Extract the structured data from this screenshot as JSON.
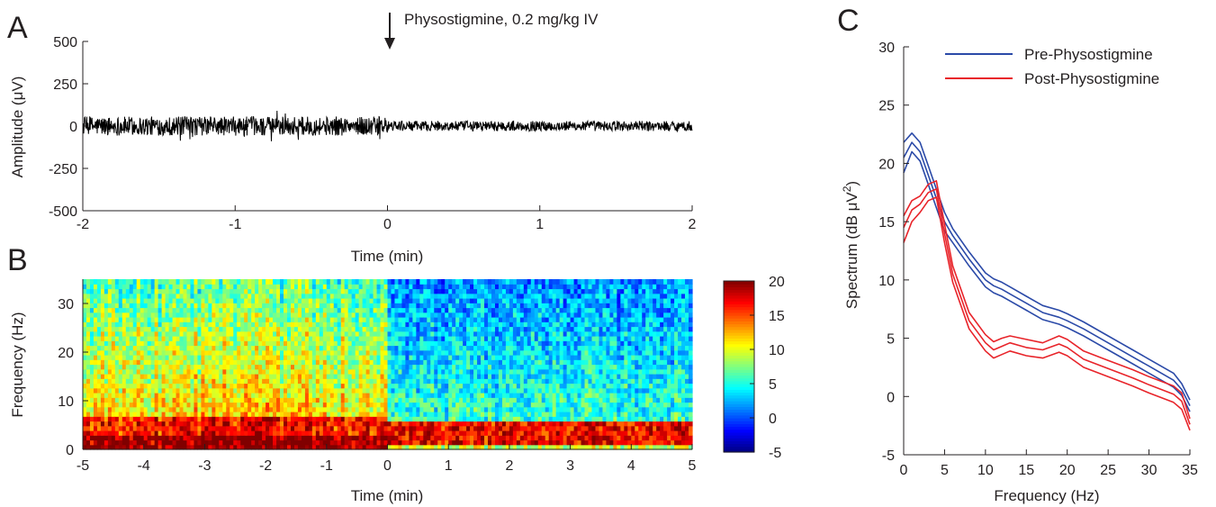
{
  "panels": {
    "a": {
      "letter": "A"
    },
    "b": {
      "letter": "B"
    },
    "c": {
      "letter": "C"
    }
  },
  "chart_data": [
    {
      "panel": "A",
      "type": "line",
      "description_of_signal": "raw EEG trace, roughly ±75 µV before injection, roughly ±40 µV after",
      "annotation": "Physostigmine, 0.2 mg/kg IV",
      "annotation_x": 0,
      "xlabel": "Time (min)",
      "ylabel": "Amplitude (μV)",
      "xlim": [
        -2,
        2
      ],
      "ylim": [
        -500,
        500
      ],
      "xticks": [
        -2,
        -1,
        0,
        1,
        2
      ],
      "yticks": [
        500,
        250,
        0,
        -250,
        -500
      ],
      "yticklabels": [
        "500",
        "250",
        "0",
        "-250",
        "-500"
      ],
      "pre_amplitude_range": [
        -75,
        75
      ],
      "post_amplitude_range": [
        -40,
        40
      ],
      "series_color": "#000000"
    },
    {
      "panel": "B",
      "type": "heatmap",
      "xlabel": "Time (min)",
      "ylabel": "Frequency (Hz)",
      "xlim": [
        -5,
        5
      ],
      "ylim": [
        0,
        35
      ],
      "xticks": [
        -5,
        -4,
        -3,
        -2,
        -1,
        0,
        1,
        2,
        3,
        4,
        5
      ],
      "xticklabels": [
        "-5",
        "-4",
        "-3",
        "-2",
        "-1",
        "0",
        "1",
        "2",
        "3",
        "4",
        "5"
      ],
      "yticks": [
        0,
        10,
        20,
        30
      ],
      "colorbar_range": [
        -5,
        20
      ],
      "colorbar_ticks": [
        20,
        15,
        10,
        5,
        0,
        -5
      ],
      "colormap": "jet",
      "color_unit": "dB",
      "pre_low_freq_power": 18,
      "post_low_freq_power": 16,
      "pre_high_freq_power": 8,
      "post_high_freq_power": 2
    },
    {
      "panel": "C",
      "type": "line",
      "xlabel": "Frequency (Hz)",
      "ylabel": "Spectrum (dB μV²)",
      "ylabel_main": "Spectrum (dB μV",
      "ylabel_sup": "2",
      "ylabel_close": ")",
      "xlim": [
        0,
        35
      ],
      "ylim": [
        -5,
        30
      ],
      "xticks": [
        0,
        5,
        10,
        15,
        20,
        25,
        30,
        35
      ],
      "yticks": [
        -5,
        0,
        5,
        10,
        15,
        20,
        25,
        30
      ],
      "legend_position": "top-right",
      "x": [
        0,
        1,
        2,
        3,
        4,
        5,
        6,
        8,
        10,
        11,
        12,
        13,
        15,
        17,
        19,
        20,
        22,
        25,
        28,
        30,
        33,
        34,
        35
      ],
      "series": [
        {
          "name": "Pre-Physostigmine",
          "color": "#2b4aa8",
          "mean": [
            20.5,
            21.8,
            21.0,
            19.0,
            17.0,
            15.0,
            13.8,
            11.8,
            10.0,
            9.5,
            9.2,
            8.8,
            8.0,
            7.2,
            6.8,
            6.5,
            5.8,
            4.6,
            3.4,
            2.6,
            1.4,
            0.6,
            -0.8
          ],
          "upper": [
            21.8,
            22.6,
            21.8,
            19.8,
            17.8,
            15.8,
            14.4,
            12.4,
            10.6,
            10.1,
            9.8,
            9.4,
            8.6,
            7.8,
            7.4,
            7.1,
            6.4,
            5.2,
            4.0,
            3.2,
            2.0,
            1.1,
            -0.3
          ],
          "lower": [
            19.2,
            21.0,
            20.2,
            18.2,
            16.2,
            14.2,
            13.2,
            11.2,
            9.4,
            8.9,
            8.6,
            8.2,
            7.4,
            6.6,
            6.2,
            5.9,
            5.2,
            4.0,
            2.8,
            2.0,
            0.8,
            0.1,
            -1.3
          ]
        },
        {
          "name": "Post-Physostigmine",
          "color": "#e8242a",
          "mean": [
            14.5,
            16.0,
            16.5,
            17.5,
            17.8,
            14.0,
            10.5,
            6.5,
            4.6,
            4.0,
            4.3,
            4.6,
            4.2,
            4.0,
            4.5,
            4.2,
            3.2,
            2.4,
            1.6,
            1.0,
            0.2,
            -0.4,
            -2.4
          ],
          "upper": [
            15.5,
            16.8,
            17.2,
            18.2,
            18.5,
            14.8,
            11.2,
            7.2,
            5.3,
            4.7,
            5.0,
            5.2,
            4.9,
            4.6,
            5.2,
            4.9,
            3.9,
            3.1,
            2.3,
            1.7,
            0.9,
            0.3,
            -1.9
          ],
          "lower": [
            13.2,
            15.0,
            15.8,
            16.8,
            17.1,
            13.2,
            9.8,
            5.8,
            3.9,
            3.3,
            3.6,
            3.9,
            3.5,
            3.3,
            3.8,
            3.5,
            2.5,
            1.7,
            0.9,
            0.3,
            -0.5,
            -1.1,
            -2.9
          ]
        }
      ]
    }
  ]
}
